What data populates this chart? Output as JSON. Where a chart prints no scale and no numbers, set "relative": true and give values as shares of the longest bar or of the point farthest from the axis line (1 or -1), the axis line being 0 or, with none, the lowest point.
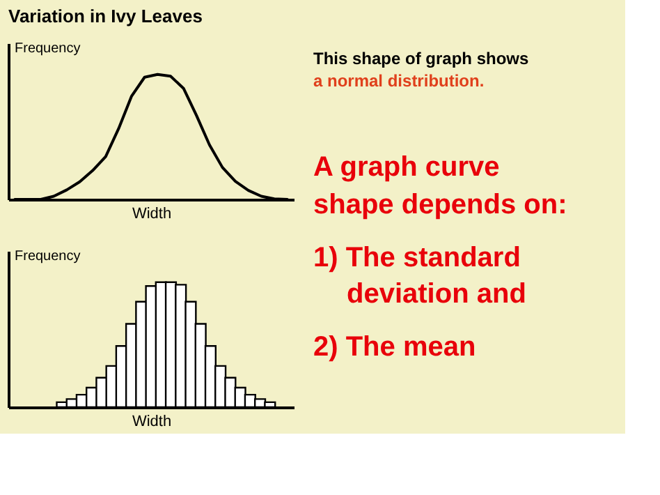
{
  "chart_data": [
    {
      "type": "line",
      "title": "Variation in Ivy Leaves",
      "relative": true,
      "xlabel": "Width",
      "ylabel": "Frequency",
      "color": "#000000",
      "categories": [
        null,
        null,
        null,
        null,
        null,
        null,
        null,
        null,
        null,
        null,
        null,
        null,
        null,
        null,
        null,
        null,
        null,
        null,
        null,
        null,
        null,
        null
      ],
      "values": [
        0,
        0,
        0,
        0.025,
        0.076,
        0.141,
        0.231,
        0.343,
        0.567,
        0.827,
        0.978,
        1.0,
        0.986,
        0.889,
        0.672,
        0.437,
        0.256,
        0.144,
        0.072,
        0.025,
        0.004,
        0
      ]
    },
    {
      "type": "bar",
      "relative": true,
      "xlabel": "Width",
      "ylabel": "Frequency",
      "color": "#ffffff",
      "categories": [
        null,
        null,
        null,
        null,
        null,
        null,
        null,
        null,
        null,
        null,
        null,
        null,
        null,
        null,
        null,
        null,
        null,
        null,
        null,
        null,
        null,
        null
      ],
      "values": [
        0.04,
        0.065,
        0.1,
        0.156,
        0.236,
        0.33,
        0.49,
        0.667,
        0.844,
        0.97,
        1,
        1,
        0.98,
        0.844,
        0.667,
        0.49,
        0.33,
        0.236,
        0.156,
        0.1,
        0.065,
        0.04
      ]
    },
    {
      "type": "other",
      "annotations": [
        "This shape of graph shows",
        "a normal distribution.",
        "A graph curve",
        "shape depends on:",
        "1) The standard",
        "deviation and",
        "2) The mean"
      ]
    }
  ]
}
